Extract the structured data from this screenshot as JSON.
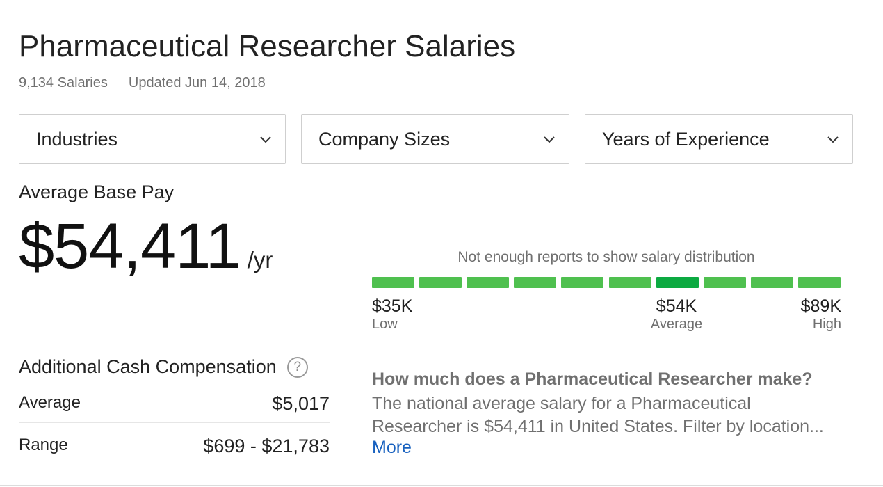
{
  "header": {
    "title": "Pharmaceutical Researcher Salaries",
    "salaries_count": "9,134 Salaries",
    "updated": "Updated Jun 14, 2018"
  },
  "filters": [
    {
      "label": "Industries",
      "icon": "chevron-down-icon"
    },
    {
      "label": "Company Sizes",
      "icon": "chevron-down-icon"
    },
    {
      "label": "Years of Experience",
      "icon": "chevron-down-icon"
    }
  ],
  "base_pay": {
    "label": "Average Base Pay",
    "value": "$54,411",
    "period": "/yr"
  },
  "distribution": {
    "note": "Not enough reports to show salary distribution",
    "segments": 10,
    "highlighted_segment": 6,
    "colors": {
      "segment": "#4fc04f",
      "highlight": "#0caa41"
    },
    "low": {
      "value": "$35K",
      "label": "Low"
    },
    "average": {
      "value": "$54K",
      "label": "Average"
    },
    "high": {
      "value": "$89K",
      "label": "High"
    }
  },
  "additional_cash": {
    "title": "Additional Cash Compensation",
    "help_icon": "question-circle-icon",
    "help_glyph": "?",
    "average_label": "Average",
    "average_value": "$5,017",
    "range_label": "Range",
    "range_value": "$699 - $21,783"
  },
  "faq": {
    "question": "How much does a Pharmaceutical Researcher make?",
    "answer": "The national average salary for a Pharmaceutical Researcher is $54,411 in United States. Filter by location...",
    "more": "More"
  }
}
